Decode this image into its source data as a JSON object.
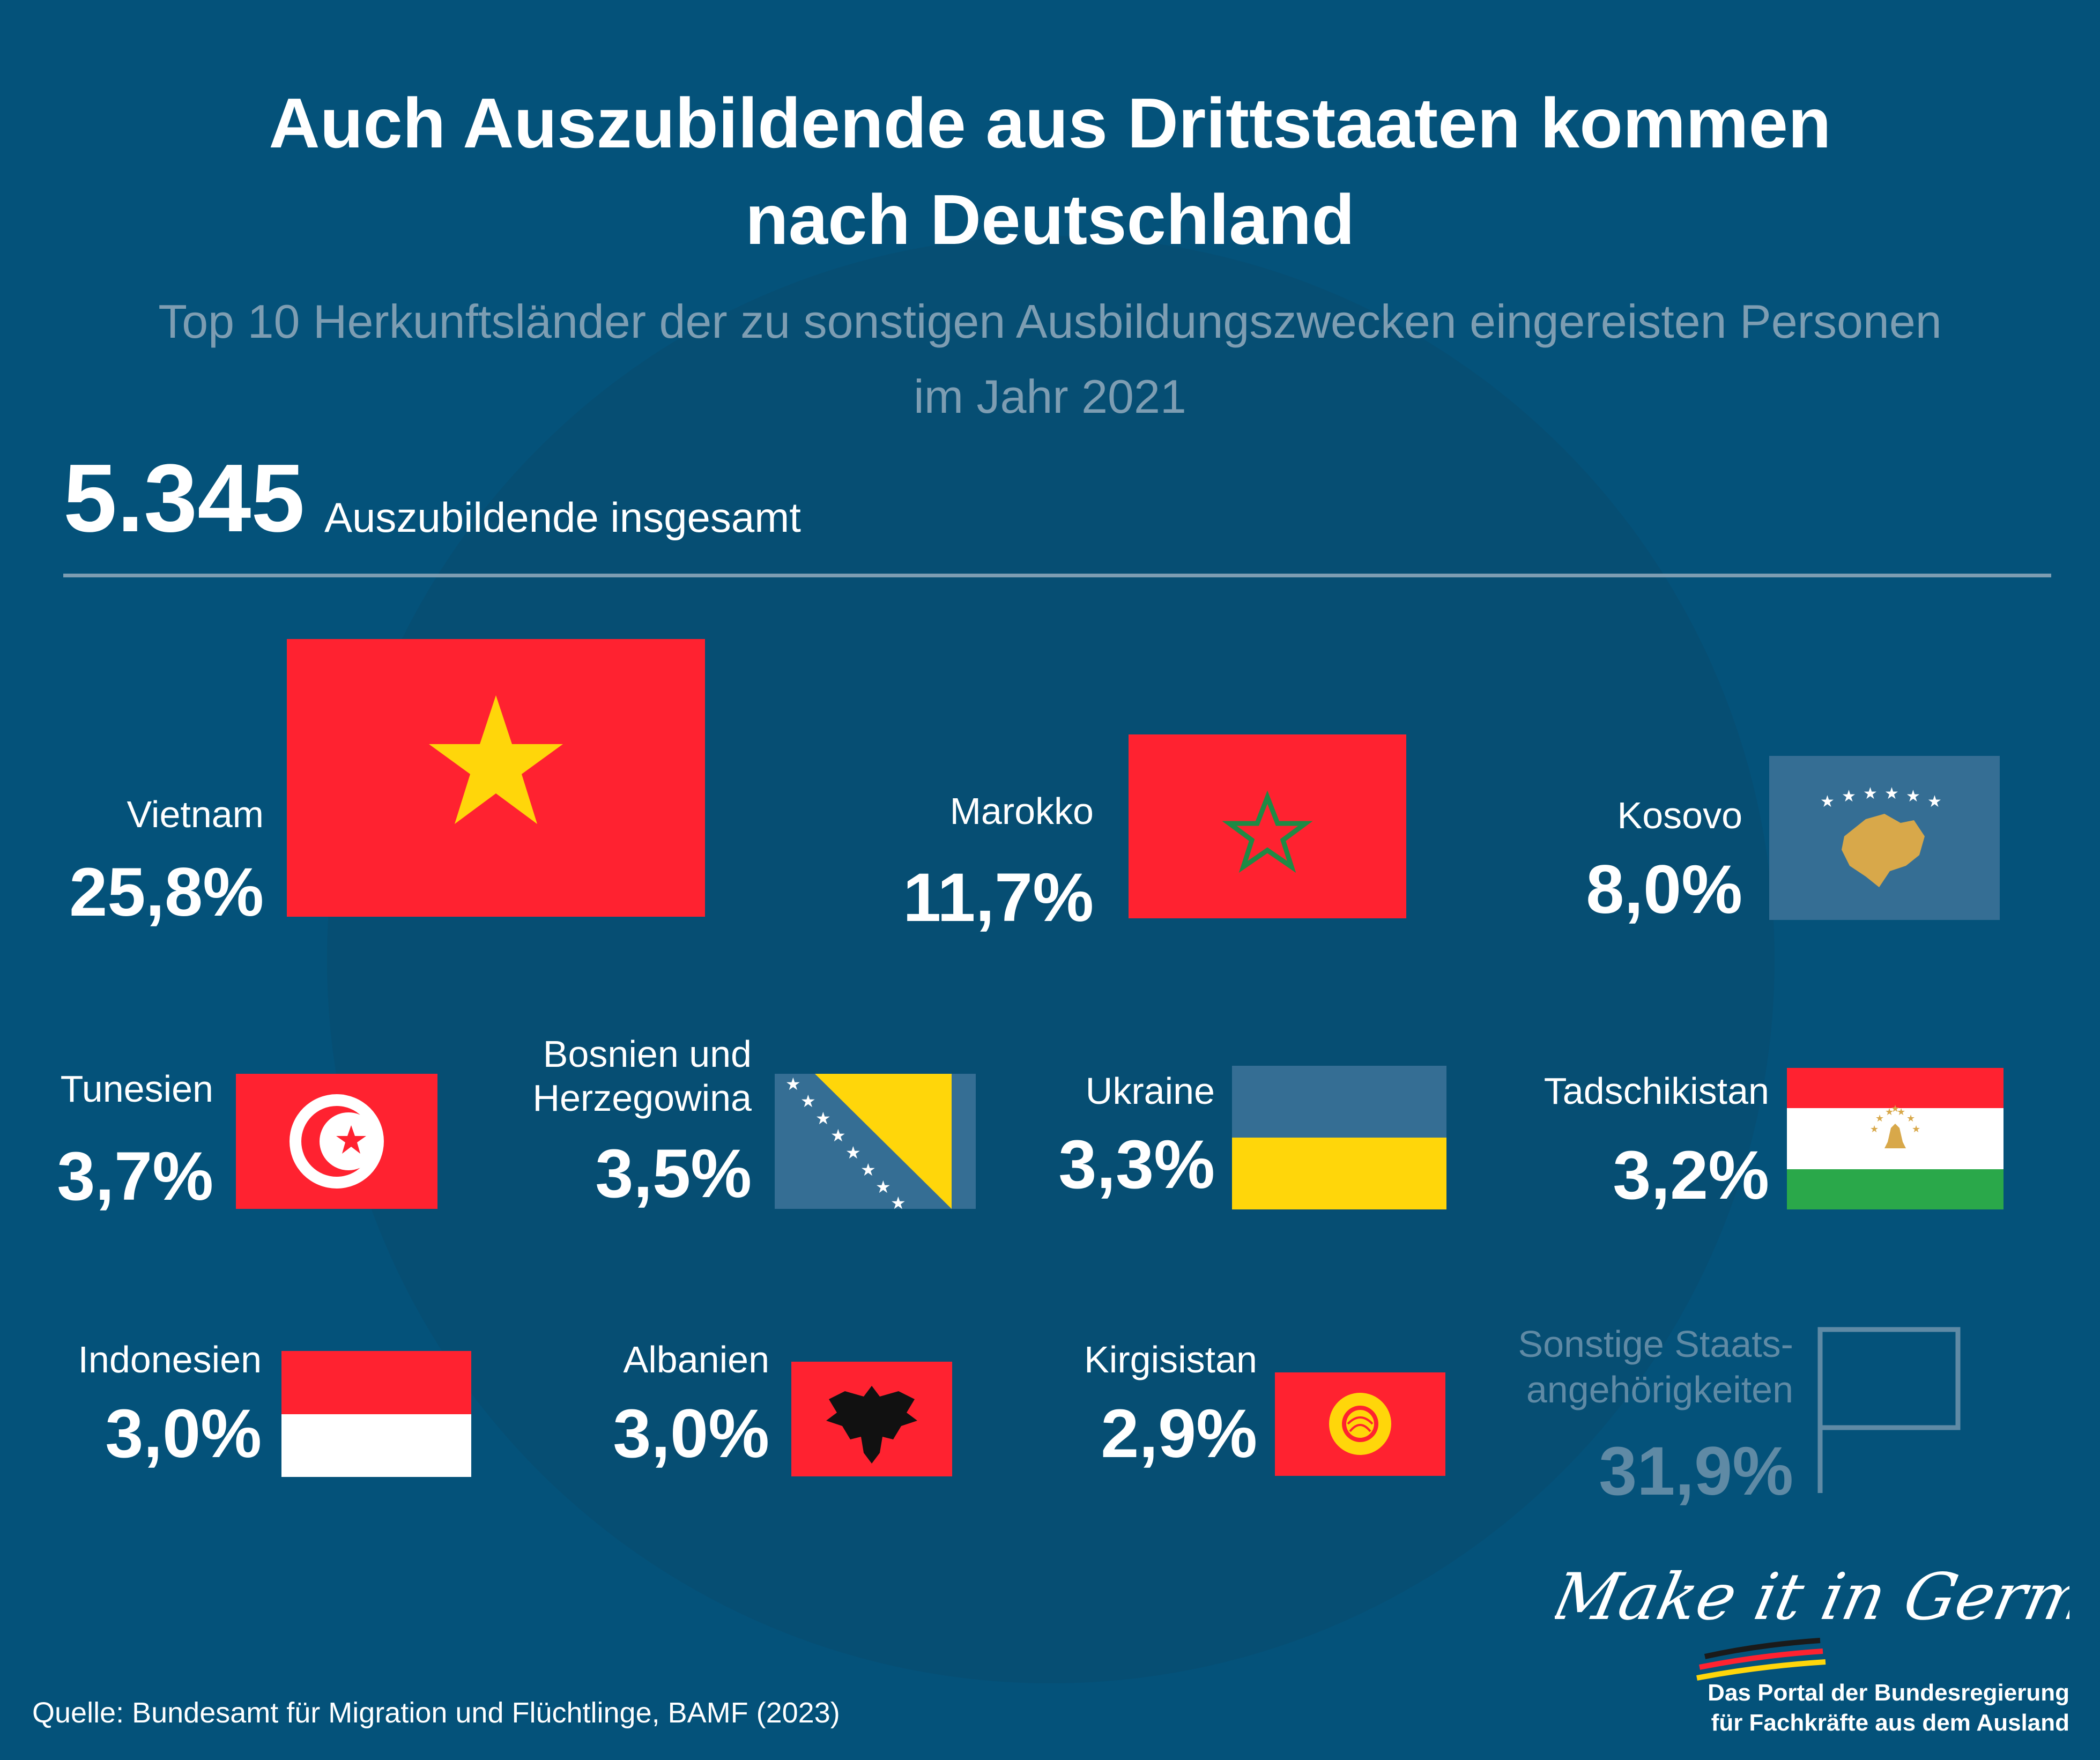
{
  "title_line1": "Auch Auszubildende aus Drittstaaten kommen",
  "title_line2": "nach Deutschland",
  "subtitle_line1": "Top 10 Herkunftsländer der zu sonstigen Ausbildungszwecken eingereisten Personen",
  "subtitle_line2": "im Jahr 2021",
  "total": {
    "number": "5.345",
    "label": "Auszubildende insgesamt"
  },
  "chart_data": {
    "type": "table",
    "title": "Top 10 Herkunftsländer der zu sonstigen Ausbildungszwecken eingereisten Personen im Jahr 2021",
    "total": 5345,
    "unit": "%",
    "categories": [
      "Vietnam",
      "Marokko",
      "Kosovo",
      "Tunesien",
      "Bosnien und Herzegowina",
      "Ukraine",
      "Tadschikistan",
      "Indonesien",
      "Albanien",
      "Kirgisistan",
      "Sonstige Staatsangehörigkeiten"
    ],
    "values": [
      25.8,
      11.7,
      8.0,
      3.7,
      3.5,
      3.3,
      3.2,
      3.0,
      3.0,
      2.9,
      31.9
    ],
    "labels": [
      "25,8%",
      "11,7%",
      "8,0%",
      "3,7%",
      "3,5%",
      "3,3%",
      "3,2%",
      "3,0%",
      "3,0%",
      "2,9%",
      "31,9%"
    ],
    "names_display": [
      "Vietnam",
      "Marokko",
      "Kosovo",
      "Tunesien",
      "Bosnien und|Herzegowina",
      "Ukraine",
      "Tadschikistan",
      "Indonesien",
      "Albanien",
      "Kirgisistan",
      "Sonstige Staats-|angehörigkeiten"
    ],
    "flags": [
      "vietnam-flag",
      "morocco-flag",
      "kosovo-flag",
      "tunisia-flag",
      "bosnia-flag",
      "ukraine-flag",
      "tajikistan-flag",
      "indonesia-flag",
      "albania-flag",
      "kyrgyzstan-flag",
      "blank-flag-outline"
    ]
  },
  "colors": {
    "background": "#04527a",
    "muted": "#5f8aa5",
    "flag_red": "#ff2230",
    "flag_yellow": "#ffd60a",
    "flag_white": "#ffffff",
    "flag_green": "#2aa84a",
    "flag_blue": "#356e94",
    "kosovo_gold": "#d8a84a"
  },
  "footer": {
    "source": "Quelle: Bundesamt für Migration und Flüchtlinge, BAMF (2023)",
    "signature": "Make it in Germany",
    "portal_line1": "Das Portal der Bundesregierung",
    "portal_line2": "für Fachkräfte aus dem Ausland"
  }
}
